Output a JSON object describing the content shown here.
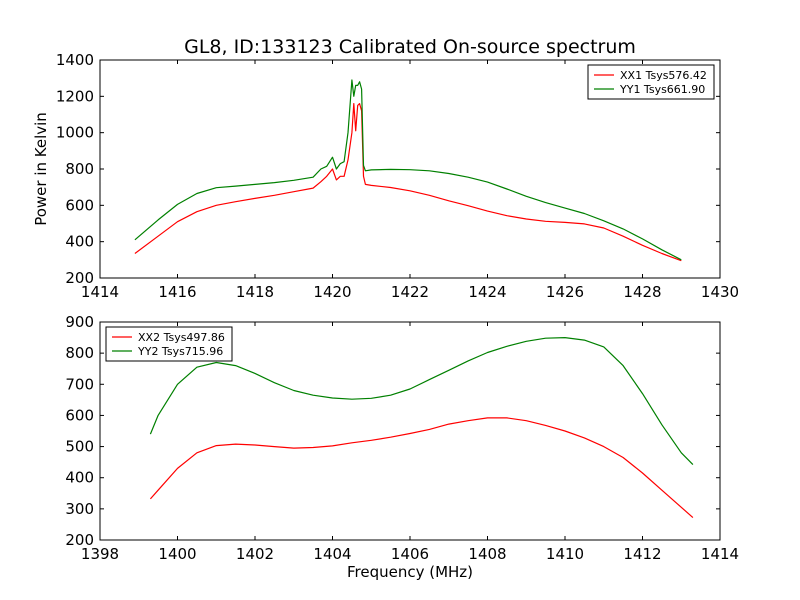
{
  "figure": {
    "title": "GL8, ID:133123 Calibrated On-source spectrum",
    "ylabel": "Power in Kelvin",
    "xlabel": "Frequency (MHz)"
  },
  "chart_data": [
    {
      "type": "line",
      "title": "GL8, ID:133123 Calibrated On-source spectrum",
      "ylabel": "Power in Kelvin",
      "xlabel": "",
      "xlim": [
        1414,
        1430
      ],
      "ylim": [
        200,
        1400
      ],
      "xticks": [
        "1414",
        "1416",
        "1418",
        "1420",
        "1422",
        "1424",
        "1426",
        "1428",
        "1430"
      ],
      "yticks": [
        "200",
        "400",
        "600",
        "800",
        "1000",
        "1200",
        "1400"
      ],
      "legend_position": "top-right",
      "grid": false,
      "series": [
        {
          "name": "XX1 Tsys576.42",
          "color": "#ff0000",
          "x": [
            1414.9,
            1415.5,
            1416.0,
            1416.5,
            1417.0,
            1417.5,
            1418.0,
            1418.5,
            1419.0,
            1419.5,
            1419.7,
            1419.85,
            1420.0,
            1420.1,
            1420.2,
            1420.3,
            1420.4,
            1420.5,
            1420.55,
            1420.6,
            1420.65,
            1420.7,
            1420.75,
            1420.8,
            1420.85,
            1421.0,
            1421.5,
            1422.0,
            1422.5,
            1423.0,
            1423.5,
            1424.0,
            1424.5,
            1425.0,
            1425.5,
            1426.0,
            1426.5,
            1427.0,
            1427.5,
            1428.0,
            1428.5,
            1429.0
          ],
          "values": [
            335,
            430,
            510,
            565,
            600,
            620,
            638,
            655,
            675,
            695,
            730,
            760,
            800,
            740,
            760,
            760,
            850,
            1000,
            1160,
            1010,
            1150,
            1160,
            1120,
            760,
            715,
            710,
            698,
            680,
            655,
            625,
            598,
            568,
            543,
            525,
            512,
            506,
            498,
            475,
            430,
            380,
            335,
            295
          ]
        },
        {
          "name": "YY1 Tsys661.90",
          "color": "#008000",
          "x": [
            1414.9,
            1415.5,
            1416.0,
            1416.5,
            1417.0,
            1417.5,
            1418.0,
            1418.5,
            1419.0,
            1419.5,
            1419.7,
            1419.85,
            1420.0,
            1420.1,
            1420.2,
            1420.3,
            1420.4,
            1420.5,
            1420.55,
            1420.6,
            1420.65,
            1420.7,
            1420.75,
            1420.8,
            1420.85,
            1421.0,
            1421.5,
            1422.0,
            1422.5,
            1423.0,
            1423.5,
            1424.0,
            1424.5,
            1425.0,
            1425.5,
            1426.0,
            1426.5,
            1427.0,
            1427.5,
            1428.0,
            1428.5,
            1429.0
          ],
          "values": [
            410,
            520,
            605,
            665,
            697,
            706,
            715,
            725,
            738,
            755,
            800,
            815,
            865,
            800,
            830,
            840,
            1000,
            1290,
            1200,
            1260,
            1260,
            1280,
            1240,
            820,
            790,
            795,
            798,
            796,
            790,
            775,
            755,
            728,
            690,
            650,
            615,
            585,
            555,
            515,
            470,
            415,
            355,
            300
          ]
        }
      ]
    },
    {
      "type": "line",
      "title": "",
      "ylabel": "",
      "xlabel": "Frequency (MHz)",
      "xlim": [
        1398,
        1414
      ],
      "ylim": [
        200,
        900
      ],
      "xticks": [
        "1398",
        "1400",
        "1402",
        "1404",
        "1406",
        "1408",
        "1410",
        "1412",
        "1414"
      ],
      "yticks": [
        "200",
        "300",
        "400",
        "500",
        "600",
        "700",
        "800",
        "900"
      ],
      "legend_position": "top-left",
      "grid": false,
      "series": [
        {
          "name": "XX2 Tsys497.86",
          "color": "#ff0000",
          "x": [
            1399.3,
            1399.5,
            1400.0,
            1400.5,
            1401.0,
            1401.5,
            1402.0,
            1402.5,
            1403.0,
            1403.5,
            1404.0,
            1404.5,
            1405.0,
            1405.5,
            1406.0,
            1406.5,
            1407.0,
            1407.5,
            1408.0,
            1408.5,
            1409.0,
            1409.5,
            1410.0,
            1410.5,
            1411.0,
            1411.5,
            1412.0,
            1412.5,
            1413.0,
            1413.3
          ],
          "values": [
            332,
            360,
            430,
            480,
            503,
            508,
            505,
            500,
            495,
            497,
            502,
            512,
            520,
            530,
            542,
            555,
            572,
            583,
            592,
            592,
            583,
            568,
            550,
            528,
            500,
            465,
            415,
            360,
            305,
            272
          ]
        },
        {
          "name": "YY2 Tsys715.96",
          "color": "#008000",
          "x": [
            1399.3,
            1399.5,
            1400.0,
            1400.5,
            1401.0,
            1401.5,
            1402.0,
            1402.5,
            1403.0,
            1403.5,
            1404.0,
            1404.5,
            1405.0,
            1405.5,
            1406.0,
            1406.5,
            1407.0,
            1407.5,
            1408.0,
            1408.5,
            1409.0,
            1409.5,
            1410.0,
            1410.5,
            1411.0,
            1411.5,
            1412.0,
            1412.5,
            1413.0,
            1413.3
          ],
          "values": [
            540,
            600,
            700,
            755,
            770,
            760,
            735,
            705,
            680,
            665,
            656,
            652,
            655,
            665,
            685,
            715,
            745,
            775,
            802,
            822,
            838,
            848,
            850,
            842,
            820,
            760,
            670,
            570,
            480,
            442
          ]
        }
      ]
    }
  ]
}
